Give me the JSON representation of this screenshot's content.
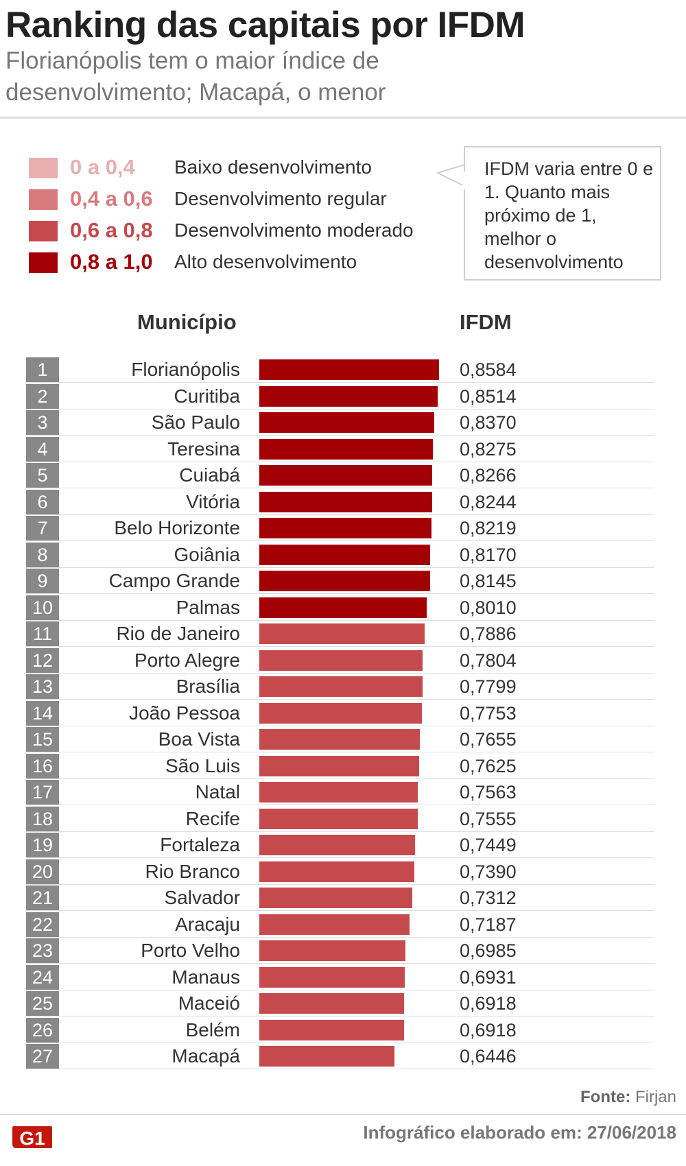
{
  "title": "Ranking das capitais por IFDM",
  "subtitle": "Florianópolis tem o maior índice de desenvolvimento; Macapá, o menor",
  "legend": [
    {
      "range": "0 a 0,4",
      "label": "Baixo desenvolvimento",
      "color": "#e8aeb0"
    },
    {
      "range": "0,4 a 0,6",
      "label": "Desenvolvimento regular",
      "color": "#d97a7d"
    },
    {
      "range": "0,6 a 0,8",
      "label": "Desenvolvimento moderado",
      "color": "#c44a4e"
    },
    {
      "range": "0,8 a 1,0",
      "label": "Alto desenvolvimento",
      "color": "#a30006"
    }
  ],
  "callout": "IFDM varia entre 0 e 1. Quanto mais próximo de 1, melhor o desenvolvimento",
  "headers": {
    "municipio": "Município",
    "ifdm": "IFDM"
  },
  "chart_data": {
    "type": "bar",
    "orientation": "horizontal",
    "xlim": [
      0,
      0.8584
    ],
    "ranks": [
      "1",
      "2",
      "3",
      "4",
      "5",
      "6",
      "7",
      "8",
      "9",
      "10",
      "11",
      "12",
      "13",
      "14",
      "15",
      "16",
      "17",
      "18",
      "19",
      "20",
      "21",
      "22",
      "23",
      "24",
      "25",
      "26",
      "27"
    ],
    "categories": [
      "Florianópolis",
      "Curitiba",
      "São Paulo",
      "Teresina",
      "Cuiabá",
      "Vitória",
      "Belo Horizonte",
      "Goiânia",
      "Campo Grande",
      "Palmas",
      "Rio de Janeiro",
      "Porto Alegre",
      "Brasília",
      "João Pessoa",
      "Boa Vista",
      "São Luis",
      "Natal",
      "Recife",
      "Fortaleza",
      "Rio Branco",
      "Salvador",
      "Aracaju",
      "Porto Velho",
      "Manaus",
      "Maceió",
      "Belém",
      "Macapá"
    ],
    "values": [
      0.8584,
      0.8514,
      0.837,
      0.8275,
      0.8266,
      0.8244,
      0.8219,
      0.817,
      0.8145,
      0.801,
      0.7886,
      0.7804,
      0.7799,
      0.7753,
      0.7655,
      0.7625,
      0.7563,
      0.7555,
      0.7449,
      0.739,
      0.7312,
      0.7187,
      0.6985,
      0.6931,
      0.6918,
      0.6918,
      0.6446
    ],
    "value_labels": [
      "0,8584",
      "0,8514",
      "0,8370",
      "0,8275",
      "0,8266",
      "0,8244",
      "0,8219",
      "0,8170",
      "0,8145",
      "0,8010",
      "0,7886",
      "0,7804",
      "0,7799",
      "0,7753",
      "0,7655",
      "0,7625",
      "0,7563",
      "0,7555",
      "0,7449",
      "0,7390",
      "0,7312",
      "0,7187",
      "0,6985",
      "0,6931",
      "0,6918",
      "0,6918",
      "0,6446"
    ],
    "colors": {
      "high": "#a30006",
      "moderate": "#c44a4e"
    },
    "threshold": 0.8
  },
  "source_label": "Fonte:",
  "source": "Firjan",
  "logo_text": "G1",
  "footer_note": "Infográfico elaborado em: 27/06/2018",
  "rank_box_color": "#888888"
}
